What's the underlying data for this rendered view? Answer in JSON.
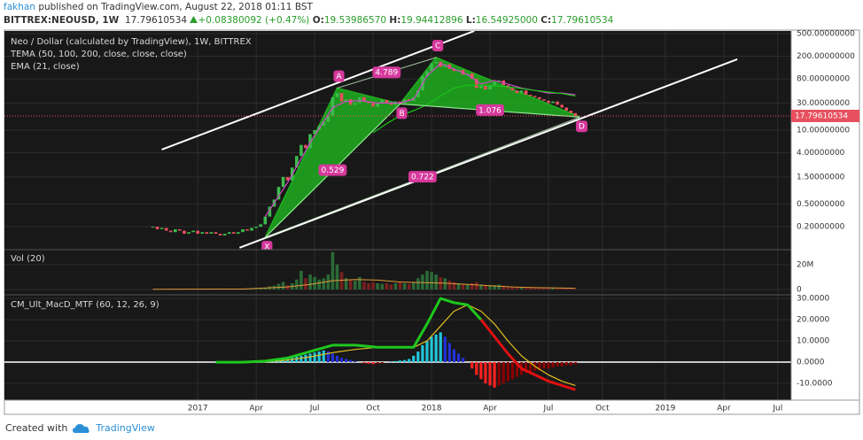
{
  "header": {
    "author": "fakhan",
    "published": "published on TradingView.com, August 22, 2018 01:11 BST",
    "symbol": "BITTREX:NEOUSD, 1W",
    "price": "17.79610534",
    "change": "+0.08380092 (+0.47%)",
    "ohlc": [
      {
        "label": "O:",
        "value": "19.53986570"
      },
      {
        "label": "H:",
        "value": "19.94412896"
      },
      {
        "label": "L:",
        "value": "16.54925000"
      },
      {
        "label": "C:",
        "value": "17.79610534"
      }
    ]
  },
  "footer": {
    "created": "Created with",
    "brand": "TradingView"
  },
  "chart_data": [
    {
      "type": "candlestick",
      "title": "Neo / Dollar (calculated by TradingView), 1W, BITTREX",
      "log_scale": true,
      "grid": true,
      "xlim": [
        -33,
        142
      ],
      "ylim": [
        0.0787,
        557
      ],
      "yticks": [
        {
          "value": 500,
          "label": "500.00000000"
        },
        {
          "value": 200,
          "label": "200.00000000"
        },
        {
          "value": 80,
          "label": "80.00000000"
        },
        {
          "value": 30,
          "label": "30.00000000"
        },
        {
          "value": 10,
          "label": "10.00000000"
        },
        {
          "value": 4,
          "label": "4.00000000"
        },
        {
          "value": 1.5,
          "label": "1.50000000"
        },
        {
          "value": 0.5,
          "label": "0.50000000"
        },
        {
          "value": 0.2,
          "label": "0.20000000"
        }
      ],
      "up_color": "#3dbb4c",
      "down_color": "#e8505f",
      "values": [
        0.2,
        0.18,
        0.19,
        0.17,
        0.16,
        0.18,
        0.17,
        0.15,
        0.16,
        0.17,
        0.15,
        0.16,
        0.15,
        0.16,
        0.15,
        0.14,
        0.15,
        0.16,
        0.15,
        0.16,
        0.18,
        0.17,
        0.19,
        0.2,
        0.22,
        0.3,
        0.45,
        0.6,
        1.0,
        1.5,
        1.3,
        2.2,
        3.5,
        5.5,
        4.8,
        8.5,
        10,
        12,
        14,
        18,
        38,
        45,
        32,
        35,
        28,
        30,
        38,
        32,
        30,
        26,
        30,
        34,
        30,
        28,
        32,
        30,
        35,
        33,
        38,
        50,
        90,
        110,
        150,
        160,
        130,
        145,
        120,
        110,
        115,
        95,
        100,
        80,
        55,
        60,
        52,
        62,
        70,
        75,
        62,
        55,
        50,
        45,
        50,
        42,
        40,
        38,
        35,
        33,
        30,
        32,
        28,
        25,
        22,
        20,
        17.8
      ],
      "series": [
        {
          "name": "TEMA (50, 100, 200, close, close, close)",
          "color": "#d048c8",
          "x": [
            25,
            30,
            35,
            40,
            43,
            46,
            50,
            55,
            58,
            61,
            64,
            67,
            70,
            73,
            76,
            79,
            82,
            85,
            88,
            91,
            94
          ],
          "values": [
            0.3,
            1.2,
            6,
            25,
            32,
            33,
            30,
            30,
            35,
            90,
            150,
            120,
            95,
            65,
            75,
            65,
            55,
            50,
            45,
            45,
            42
          ]
        },
        {
          "name": "EMA (21, close)",
          "color": "#19c419",
          "x": [
            49,
            52,
            55,
            58,
            61,
            64,
            67,
            70,
            73,
            76,
            79,
            82,
            85,
            88,
            91,
            94
          ],
          "values": [
            9,
            13,
            18,
            22,
            28,
            40,
            55,
            62,
            62,
            60,
            58,
            54,
            50,
            47,
            44,
            40
          ]
        }
      ],
      "pattern": {
        "color": "#1fae1f",
        "label_color": "#d6389c",
        "points": [
          {
            "label": "X",
            "x": 25,
            "value": 0.13
          },
          {
            "label": "A",
            "x": 41,
            "value": 55
          },
          {
            "label": "B",
            "x": 55,
            "value": 29
          },
          {
            "label": "C",
            "x": 63,
            "value": 190
          },
          {
            "label": "D",
            "x": 95,
            "value": 17
          }
        ],
        "ratios": [
          {
            "value": 0.529,
            "between": [
              "X",
              "B"
            ]
          },
          {
            "value": 4.789,
            "between": [
              "A",
              "C"
            ]
          },
          {
            "value": 1.076,
            "between": [
              "B",
              "D"
            ]
          },
          {
            "value": 0.722,
            "between": [
              "X",
              "D"
            ]
          }
        ]
      },
      "trendline_color": "#ffffff",
      "trendlines": [
        {
          "x": [
            2,
            71.5
          ],
          "values": [
            4.55,
            557
          ]
        },
        {
          "x": [
            19.3,
            130
          ],
          "values": [
            0.085,
            177
          ]
        }
      ],
      "last_price": {
        "value": 17.79610534,
        "label": "17.79610534",
        "color": "#e8505f"
      }
    },
    {
      "type": "bar",
      "title": "Vol (20)",
      "xlim": [
        -33,
        142
      ],
      "ylim": [
        -4300000,
        32000000
      ],
      "yticks": [
        {
          "value": 20000000,
          "label": "20M"
        },
        0
      ],
      "up_color": "#2b6a37",
      "down_color": "#7a2020",
      "values": [
        150000,
        120000,
        200000,
        180000,
        150000,
        250000,
        300000,
        200000,
        150000,
        180000,
        220000,
        150000,
        200000,
        180000,
        150000,
        120000,
        200000,
        250000,
        300000,
        250000,
        400000,
        350000,
        500000,
        600000,
        800000,
        1500000,
        2500000,
        3000000,
        4500000,
        6000000,
        3500000,
        5000000,
        8000000,
        15000000,
        9000000,
        12000000,
        10000000,
        8000000,
        9000000,
        12000000,
        30000000,
        20000000,
        14000000,
        9000000,
        8000000,
        7000000,
        10000000,
        6000000,
        5000000,
        6000000,
        5000000,
        4500000,
        5000000,
        4000000,
        5000000,
        6000000,
        5000000,
        4500000,
        6000000,
        9000000,
        12000000,
        15000000,
        14000000,
        12000000,
        10000000,
        9000000,
        7000000,
        6000000,
        5000000,
        4500000,
        4000000,
        5000000,
        6000000,
        4000000,
        3500000,
        3000000,
        3500000,
        4000000,
        3000000,
        2500000,
        2000000,
        1800000,
        1500000,
        1800000,
        1500000,
        1200000,
        1300000,
        1000000,
        1200000,
        1000000,
        900000,
        1000000,
        1100000,
        900000,
        600000
      ],
      "series": [
        {
          "color": "#e09a3a",
          "x": [
            0,
            20,
            30,
            35,
            40,
            45,
            50,
            55,
            60,
            65,
            70,
            75,
            80,
            85,
            90,
            94
          ],
          "values": [
            200000,
            300000,
            2000000,
            4000000,
            7000000,
            8000000,
            7500000,
            6000000,
            5500000,
            5000000,
            4000000,
            3000000,
            2000000,
            1500000,
            1200000,
            1000000
          ]
        }
      ]
    },
    {
      "type": "macd",
      "title": "CM_Ult_MacD_MTF (60, 12, 26, 9)",
      "xlim": [
        -33,
        142
      ],
      "ylim": [
        -17.9,
        31.7
      ],
      "yticks": [
        {
          "value": 30,
          "label": "30.0000"
        },
        {
          "value": 20,
          "label": "20.0000"
        },
        {
          "value": 10,
          "label": "10.0000"
        },
        {
          "value": 0,
          "label": "0.0000"
        },
        {
          "value": -10,
          "label": "-10.0000"
        }
      ],
      "xticks": [
        {
          "value": 10,
          "label": "2017"
        },
        {
          "value": 23,
          "label": "Apr"
        },
        {
          "value": 36,
          "label": "Jul"
        },
        {
          "value": 49,
          "label": "Oct"
        },
        {
          "value": 62,
          "label": "2018"
        },
        {
          "value": 75,
          "label": "Apr"
        },
        {
          "value": 88,
          "label": "Jul"
        },
        {
          "value": 100,
          "label": "Oct"
        },
        {
          "value": 114,
          "label": "2019"
        },
        {
          "value": 127,
          "label": "Apr"
        },
        {
          "value": 139,
          "label": "Jul"
        }
      ],
      "zero_line_color": "#ffffff",
      "hist_colors": {
        "pos_up": "#22c6dc",
        "pos_down": "#2233d8",
        "neg_down": "#ff2020",
        "neg_up": "#8a0000"
      },
      "histogram": [
        0,
        0,
        0,
        0,
        0,
        0,
        0,
        0,
        0,
        0,
        0,
        0,
        0,
        0,
        0,
        0,
        0,
        0,
        0,
        0,
        0,
        0,
        0,
        0,
        0,
        0.5,
        0.8,
        1,
        1.5,
        2,
        2.5,
        2.5,
        3,
        3,
        3.5,
        4,
        4.5,
        5,
        5.5,
        5,
        4,
        3,
        2,
        1.5,
        1,
        0.5,
        0,
        -0.5,
        -0.8,
        -1,
        -0.8,
        -0.5,
        0,
        0.3,
        0.5,
        0.8,
        1,
        1.5,
        3,
        5,
        8,
        10,
        12,
        13,
        14,
        12,
        9,
        6,
        4,
        2,
        0,
        -3,
        -6,
        -8,
        -10,
        -11,
        -12,
        -11,
        -10,
        -9,
        -8,
        -7,
        -6,
        -5,
        -5,
        -4,
        -4,
        -3,
        -3,
        -2.5,
        -2,
        -2,
        -1.5,
        -1.5,
        -1
      ],
      "x": [
        14,
        20,
        25,
        30,
        35,
        40,
        45,
        50,
        55,
        58,
        61,
        64,
        67,
        70,
        73,
        76,
        79,
        82,
        85,
        88,
        91,
        94
      ],
      "macd": {
        "color_above": "#1ec81e",
        "color_below": "#e01010",
        "values": [
          0,
          0,
          0.5,
          2,
          5,
          8,
          8,
          7,
          7,
          7,
          18,
          30,
          28,
          27,
          20,
          12,
          4,
          -3,
          -6,
          -9,
          -11,
          -13
        ]
      },
      "signal": {
        "color": "#e0c020",
        "values": [
          0,
          0,
          0.2,
          1,
          2.5,
          4.5,
          6,
          7,
          7,
          7,
          10,
          17,
          24,
          27,
          24,
          18,
          10,
          3,
          -2,
          -6,
          -9,
          -11
        ]
      }
    }
  ]
}
